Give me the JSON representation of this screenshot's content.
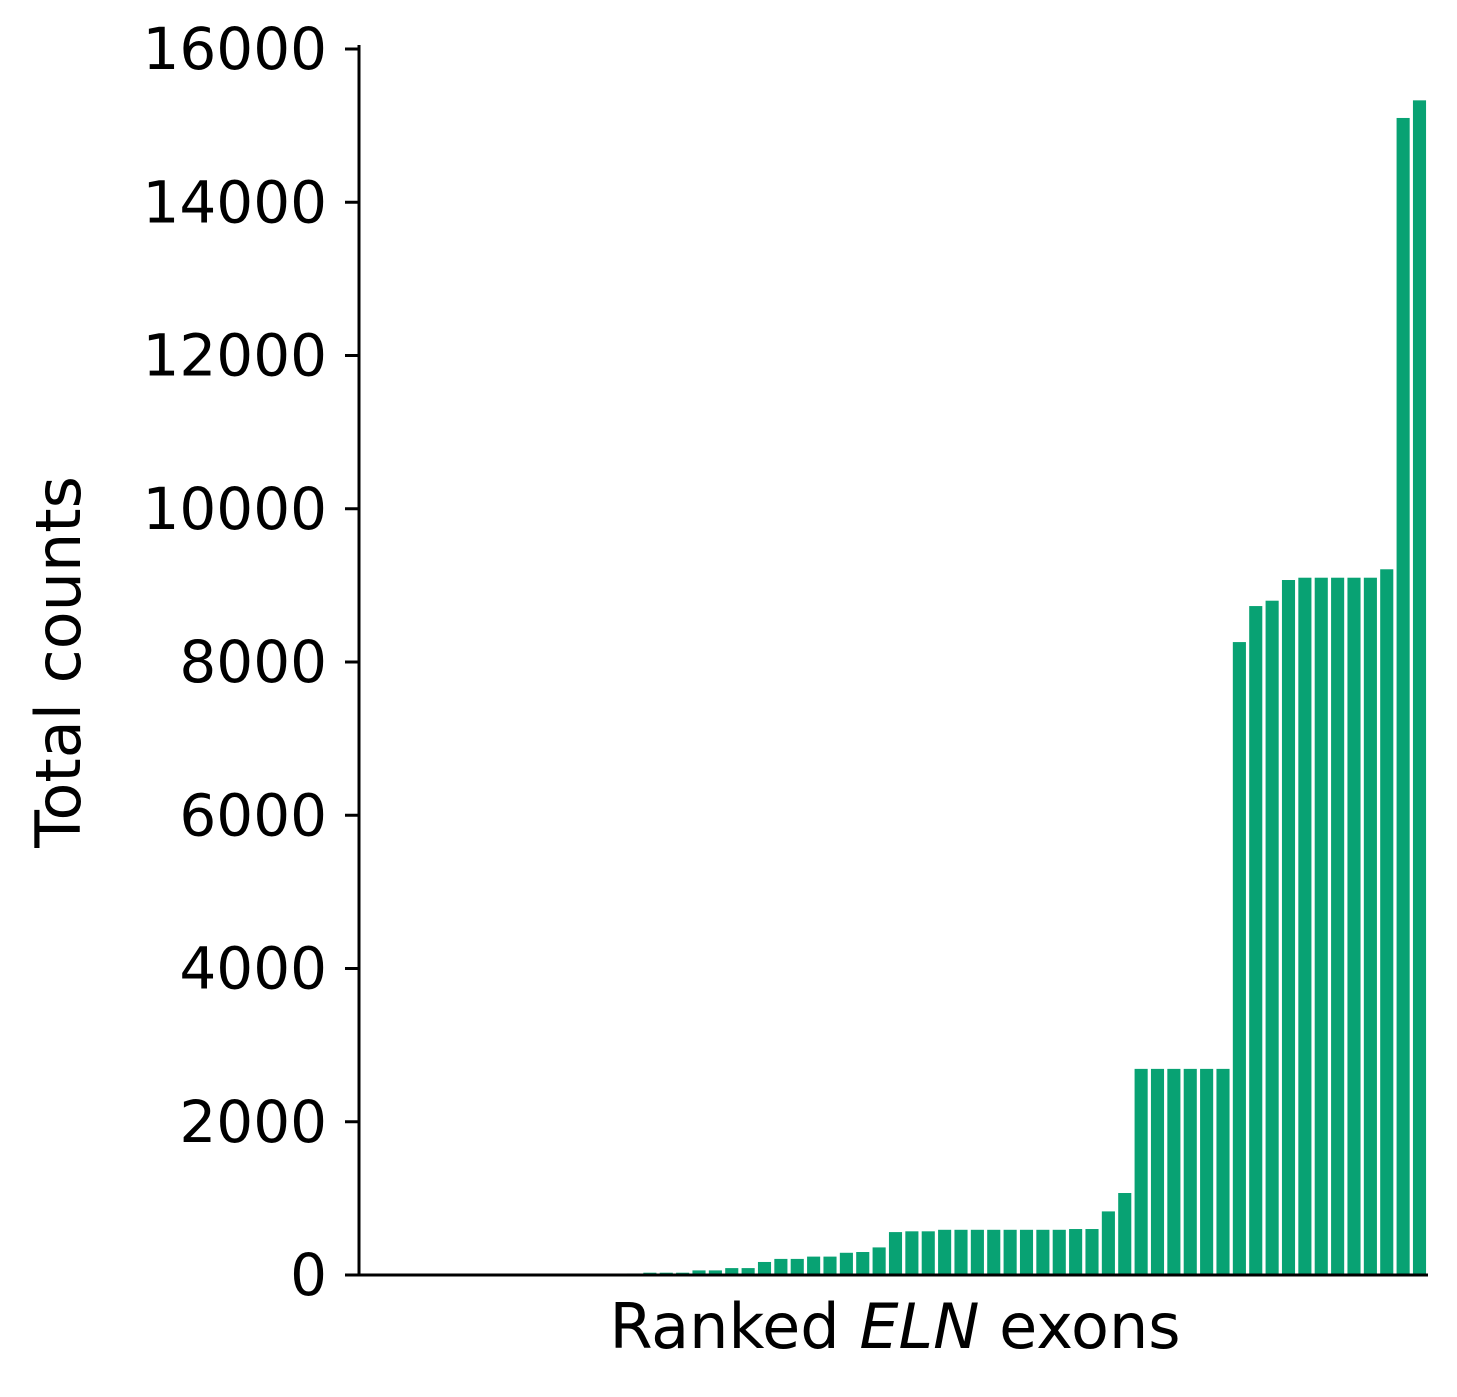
{
  "chart_data": {
    "type": "bar",
    "title": "",
    "ylabel": "Total counts",
    "xlabel": {
      "prefix": "Ranked ",
      "emphasis": "ELN",
      "suffix": " exons"
    },
    "ylim": [
      0,
      16000
    ],
    "yticks": [
      0,
      2000,
      4000,
      6000,
      8000,
      10000,
      12000,
      14000,
      16000
    ],
    "ytick_labels": [
      "0",
      "2000",
      "4000",
      "6000",
      "8000",
      "10000",
      "12000",
      "14000",
      "16000"
    ],
    "x_tick_labels": "none",
    "grid": false,
    "legend": "none",
    "bar_color": "#08a273",
    "values": [
      0,
      0,
      0,
      0,
      0,
      0,
      0,
      0,
      0,
      0,
      0,
      0,
      0,
      0,
      0,
      0,
      20,
      30,
      30,
      30,
      60,
      60,
      90,
      90,
      170,
      210,
      210,
      240,
      240,
      290,
      300,
      360,
      560,
      570,
      570,
      590,
      590,
      590,
      590,
      590,
      590,
      590,
      590,
      600,
      600,
      830,
      1070,
      2690,
      2690,
      2690,
      2690,
      2690,
      2690,
      8260,
      8730,
      8800,
      9070,
      9100,
      9100,
      9100,
      9100,
      9100,
      9210,
      15100,
      15330
    ]
  }
}
